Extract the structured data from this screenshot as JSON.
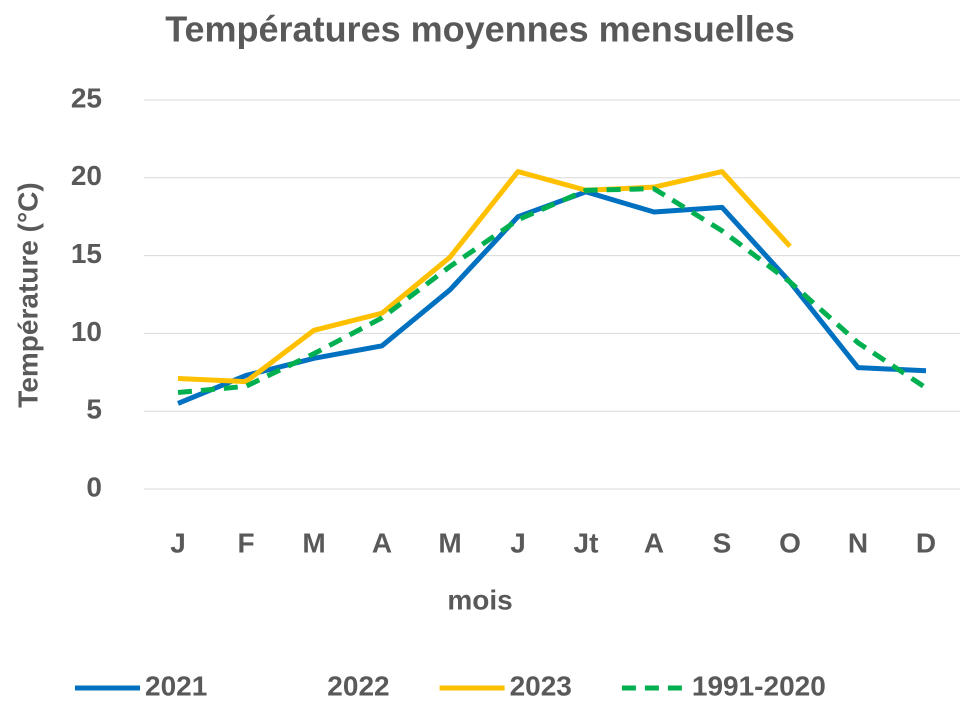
{
  "chart_data": {
    "type": "line",
    "title": "Températures moyennes mensuelles",
    "x_label": "mois",
    "y_label": "Température (°C)",
    "categories": [
      "J",
      "F",
      "M",
      "A",
      "M",
      "J",
      "Jt",
      "A",
      "S",
      "O",
      "N",
      "D"
    ],
    "series": [
      {
        "name": "2021",
        "color": "#0070c0",
        "dash": false,
        "values": [
          5.5,
          7.3,
          8.4,
          9.2,
          12.8,
          17.5,
          19.1,
          17.8,
          18.1,
          13.3,
          7.8,
          7.6
        ]
      },
      {
        "name": "2022",
        "color": "#ffffff",
        "dash": false,
        "values": [
          null,
          null,
          null,
          null,
          null,
          null,
          null,
          null,
          null,
          null,
          null,
          null
        ]
      },
      {
        "name": "2023",
        "color": "#ffc000",
        "dash": false,
        "values": [
          7.1,
          6.9,
          10.2,
          11.3,
          14.9,
          20.4,
          19.2,
          19.4,
          20.4,
          15.6,
          null,
          null
        ]
      },
      {
        "name": "1991-2020",
        "color": "#00b050",
        "dash": true,
        "values": [
          6.2,
          6.6,
          8.7,
          11.0,
          14.3,
          17.3,
          19.2,
          19.3,
          16.6,
          13.3,
          9.4,
          6.5
        ]
      }
    ],
    "ylim": [
      0,
      25
    ],
    "yticks": [
      0,
      5,
      10,
      15,
      20,
      25
    ],
    "grid": true,
    "legend": "bottom"
  }
}
